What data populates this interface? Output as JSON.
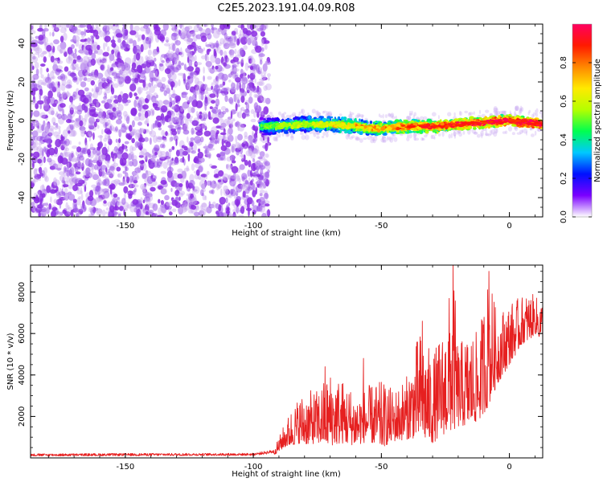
{
  "figure_title": "C2E5.2023.191.04.09.R08",
  "colors": {
    "snr_line": "#e62020",
    "spectro_noise": "#8a2be2",
    "spectro_noise_light": "#c9a8f0",
    "axes": "#000000"
  },
  "chart_data": [
    {
      "type": "heatmap",
      "panel": "spectrogram",
      "xlabel": "Height of straight line (km)",
      "ylabel": "Frequency (Hz)",
      "xlim": [
        -187,
        13
      ],
      "ylim": [
        -50,
        50
      ],
      "x_ticks": [
        -150,
        -100,
        -50,
        0
      ],
      "y_ticks": [
        -40,
        -20,
        0,
        20,
        40
      ],
      "grid": false,
      "signal_onset_km": -97,
      "noise_fills_entire_band_below_km": -97,
      "signal_track": {
        "x": [
          -97,
          -90,
          -80,
          -70,
          -60,
          -55,
          -50,
          -40,
          -30,
          -20,
          -10,
          0,
          8,
          13
        ],
        "freq": [
          -3,
          -3,
          -2,
          -2,
          -3,
          -4,
          -4,
          -3,
          -3,
          -2,
          -1,
          0,
          -1,
          -2
        ]
      },
      "colorbar": {
        "label": "Normalized spectral amplitude",
        "range": [
          0,
          1
        ],
        "ticks": [
          0.0,
          0.2,
          0.4,
          0.6,
          0.8
        ],
        "colormap": [
          "#ffffff",
          "#7b00ff",
          "#0010ff",
          "#00c8ff",
          "#00ff50",
          "#b4ff00",
          "#ffea00",
          "#ff8800",
          "#ff1a00",
          "#ff0060"
        ]
      }
    },
    {
      "type": "line",
      "panel": "snr",
      "xlabel": "Height of straight line (km)",
      "ylabel": "SNR (10 * v/v)",
      "xlim": [
        -187,
        13
      ],
      "ylim": [
        0,
        9300
      ],
      "x_ticks": [
        -150,
        -100,
        -50,
        0
      ],
      "y_ticks": [
        2000,
        4000,
        6000,
        8000
      ],
      "grid": false,
      "series": [
        {
          "envelope_x": [
            -187,
            -150,
            -100,
            -92,
            -90,
            -88,
            -85,
            -82,
            -80,
            -75,
            -70,
            -65,
            -60,
            -55,
            -50,
            -45,
            -40,
            -35,
            -30,
            -25,
            -22,
            -20,
            -15,
            -12,
            -8,
            -5,
            0,
            5,
            8,
            10,
            13
          ],
          "envelope_low": [
            30,
            40,
            60,
            150,
            300,
            500,
            600,
            700,
            650,
            700,
            600,
            700,
            600,
            800,
            500,
            800,
            900,
            1000,
            700,
            1200,
            1300,
            1500,
            1600,
            1800,
            2500,
            3500,
            4500,
            5500,
            5700,
            6000,
            5600
          ],
          "envelope_high": [
            200,
            220,
            230,
            400,
            1000,
            1600,
            2400,
            3000,
            3200,
            3300,
            4200,
            3800,
            3200,
            3500,
            3700,
            3300,
            4000,
            6200,
            5000,
            6500,
            9300,
            5500,
            6200,
            6000,
            9000,
            7000,
            7500,
            7800,
            8000,
            7800,
            7600
          ],
          "notable_peaks": [
            {
              "x": -22,
              "y": 9300
            },
            {
              "x": -8,
              "y": 9000
            },
            {
              "x": -34,
              "y": 6600
            },
            {
              "x": -57,
              "y": 4800
            },
            {
              "x": -72,
              "y": 4400
            }
          ]
        }
      ]
    }
  ]
}
